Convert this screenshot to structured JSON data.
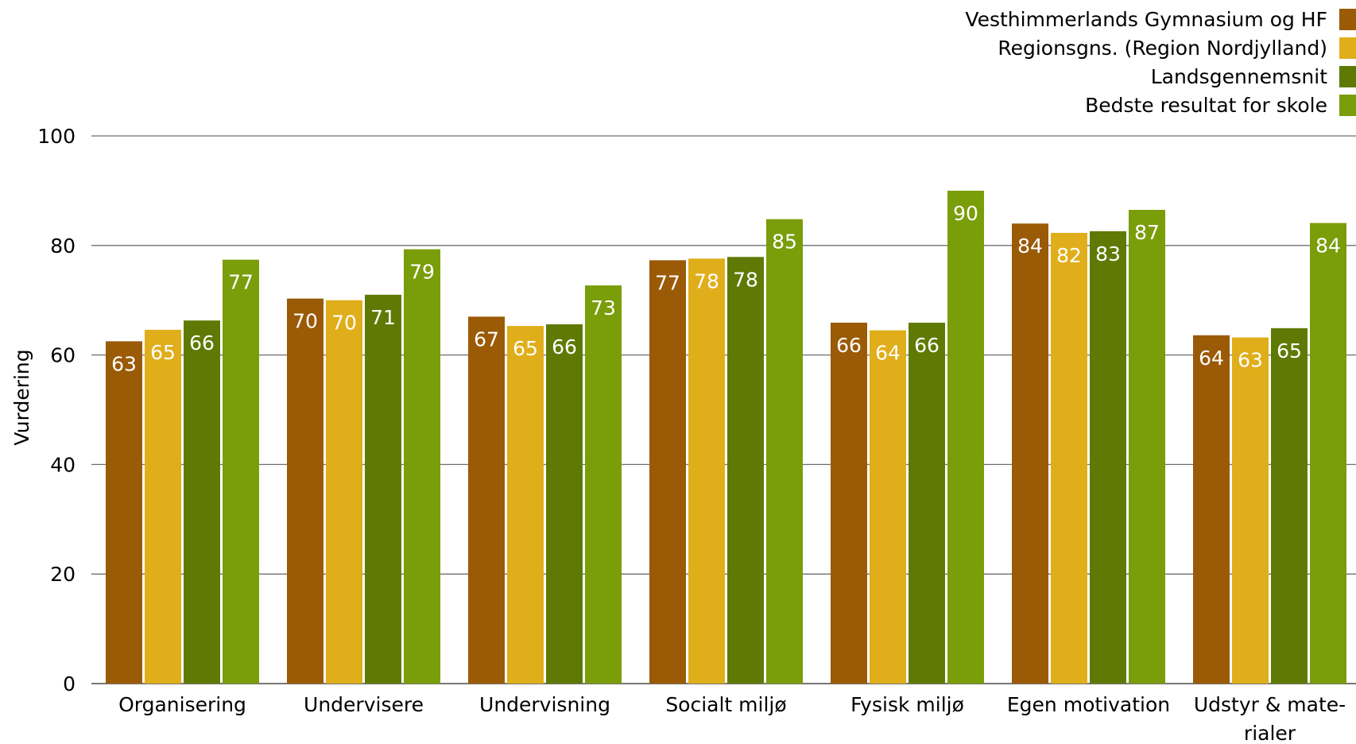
{
  "chart_data": {
    "type": "bar",
    "ylabel": "Vurdering",
    "ylim": [
      0,
      100
    ],
    "yticks": [
      0,
      20,
      40,
      60,
      80,
      100
    ],
    "grid": true,
    "legend_position": "top-right",
    "categories": [
      [
        "Organisering"
      ],
      [
        "Undervisere"
      ],
      [
        "Undervisning"
      ],
      [
        "Socialt miljø"
      ],
      [
        "Fysisk miljø"
      ],
      [
        "Egen motivation"
      ],
      [
        "Udstyr & mate-",
        "rialer"
      ]
    ],
    "series": [
      {
        "name": "Vesthimmerlands Gymnasium og HF",
        "color": "#9a5a06",
        "values": [
          62.5,
          70.3,
          67.0,
          77.3,
          65.9,
          84.0,
          63.6
        ],
        "labels": [
          "63",
          "70",
          "67",
          "77",
          "66",
          "84",
          "64"
        ]
      },
      {
        "name": "Regionsgns. (Region Nordjylland)",
        "color": "#e0ae1a",
        "values": [
          64.6,
          70.0,
          65.3,
          77.6,
          64.5,
          82.3,
          63.2
        ],
        "labels": [
          "65",
          "70",
          "65",
          "78",
          "64",
          "82",
          "63"
        ]
      },
      {
        "name": "Landsgennemsnit",
        "color": "#5f7a04",
        "values": [
          66.3,
          71.0,
          65.6,
          77.9,
          65.9,
          82.6,
          64.9
        ],
        "labels": [
          "66",
          "71",
          "66",
          "78",
          "66",
          "83",
          "65"
        ]
      },
      {
        "name": "Bedste resultat for skole",
        "color": "#7a9d0a",
        "values": [
          77.4,
          79.3,
          72.7,
          84.8,
          90.0,
          86.5,
          84.1
        ],
        "labels": [
          "77",
          "79",
          "73",
          "85",
          "90",
          "87",
          "84"
        ]
      }
    ]
  }
}
